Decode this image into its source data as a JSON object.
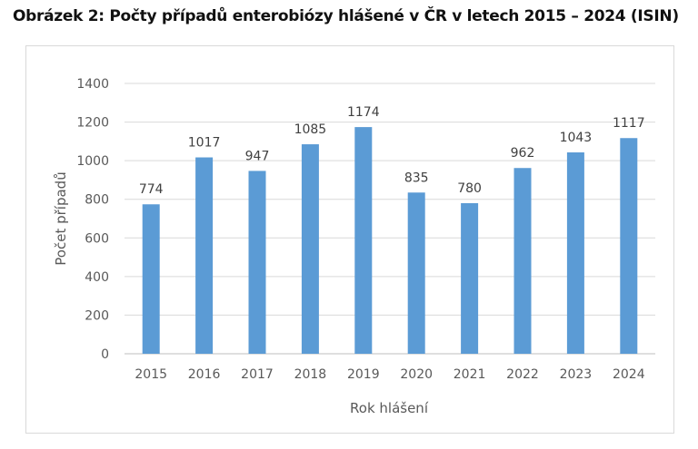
{
  "chart_data": {
    "type": "bar",
    "title": "Obrázek 2: Počty případů enterobiózy hlášené v ČR v letech 2015 – 2024 (ISIN)",
    "xlabel": "Rok hlášení",
    "ylabel": "Počet případů",
    "categories": [
      "2015",
      "2016",
      "2017",
      "2018",
      "2019",
      "2020",
      "2021",
      "2022",
      "2023",
      "2024"
    ],
    "values": [
      774,
      1017,
      947,
      1085,
      1174,
      835,
      780,
      962,
      1043,
      1117
    ],
    "ylim": [
      0,
      1400
    ],
    "yticks": [
      0,
      200,
      400,
      600,
      800,
      1000,
      1200,
      1400
    ],
    "grid": true,
    "data_labels": true,
    "bar_color": "#5b9bd5"
  }
}
